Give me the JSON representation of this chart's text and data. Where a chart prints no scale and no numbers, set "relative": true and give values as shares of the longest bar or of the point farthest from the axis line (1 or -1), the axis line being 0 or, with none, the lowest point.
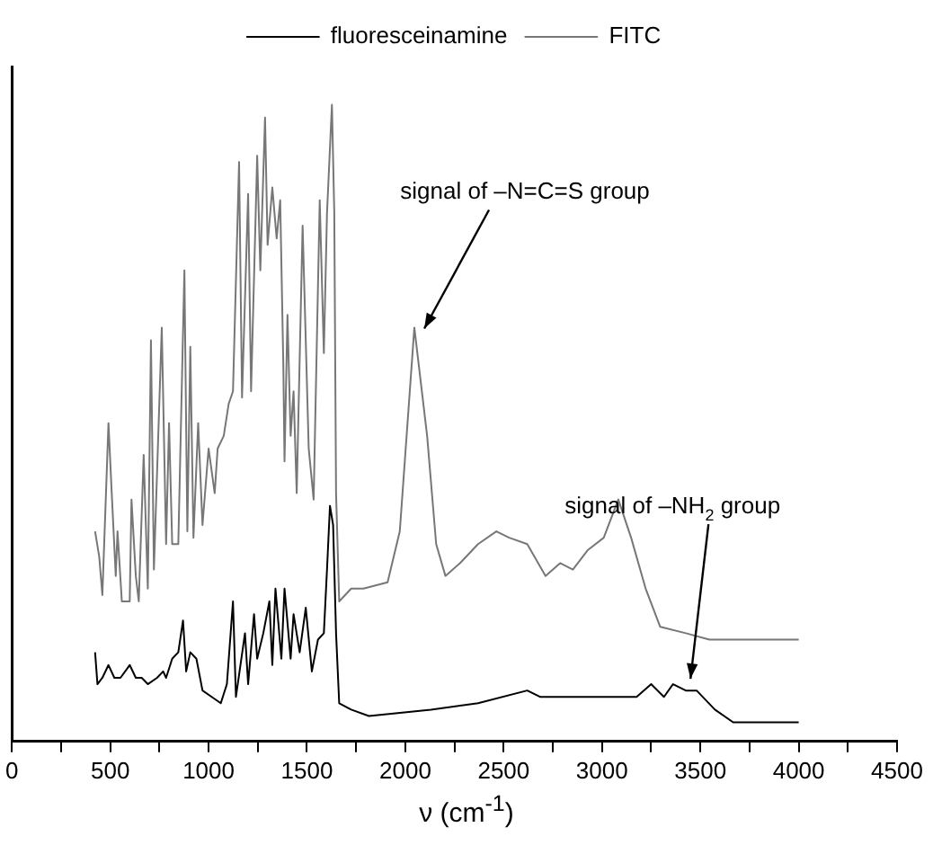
{
  "chart_data": {
    "type": "line",
    "relative": true,
    "xlabel": "ν (cm$^{-1}$)",
    "xlim": [
      0,
      4500
    ],
    "xticks": [
      0,
      {
        "value": 250,
        "label": null
      },
      500,
      {
        "value": 750,
        "label": null
      },
      1000,
      {
        "value": 1250,
        "label": null
      },
      1500,
      {
        "value": 1750,
        "label": null
      },
      2000,
      {
        "value": 2250,
        "label": null
      },
      2500,
      {
        "value": 2750,
        "label": null
      },
      3000,
      {
        "value": 3250,
        "label": null
      },
      3500,
      {
        "value": 3750,
        "label": null
      },
      4000,
      {
        "value": 4250,
        "label": null
      },
      4500
    ],
    "legend": "top",
    "grid": false,
    "marker": "none",
    "line_style": "solid",
    "series": [
      {
        "name": "fluoresceinamine",
        "color": "#000000",
        "x": [
          423,
          435,
          460,
          491,
          521,
          552,
          599,
          630,
          660,
          691,
          738,
          769,
          784,
          815,
          846,
          870,
          886,
          907,
          938,
          969,
          1016,
          1062,
          1093,
          1124,
          1139,
          1185,
          1201,
          1231,
          1247,
          1278,
          1309,
          1324,
          1340,
          1370,
          1386,
          1417,
          1432,
          1463,
          1494,
          1525,
          1556,
          1586,
          1602,
          1617,
          1633,
          1648,
          1664,
          1725,
          1815,
          2130,
          2370,
          2620,
          2685,
          2778,
          2898,
          3056,
          3176,
          3250,
          3315,
          3361,
          3426,
          3481,
          3574,
          3667,
          3824,
          4000
        ],
        "values": [
          0.14,
          0.09,
          0.1,
          0.12,
          0.1,
          0.1,
          0.12,
          0.1,
          0.1,
          0.09,
          0.1,
          0.11,
          0.1,
          0.13,
          0.14,
          0.19,
          0.11,
          0.14,
          0.13,
          0.08,
          0.07,
          0.06,
          0.09,
          0.22,
          0.07,
          0.17,
          0.09,
          0.2,
          0.13,
          0.17,
          0.22,
          0.12,
          0.24,
          0.13,
          0.24,
          0.13,
          0.2,
          0.14,
          0.21,
          0.11,
          0.16,
          0.17,
          0.27,
          0.37,
          0.34,
          0.17,
          0.06,
          0.05,
          0.04,
          0.05,
          0.06,
          0.08,
          0.07,
          0.07,
          0.07,
          0.07,
          0.07,
          0.09,
          0.07,
          0.09,
          0.08,
          0.08,
          0.05,
          0.03,
          0.03,
          0.03
        ]
      },
      {
        "name": "FITC",
        "color": "#777777",
        "x": [
          423,
          444,
          460,
          491,
          506,
          528,
          537,
          559,
          599,
          608,
          630,
          645,
          670,
          691,
          707,
          722,
          762,
          784,
          799,
          815,
          846,
          877,
          892,
          907,
          923,
          947,
          969,
          1000,
          1031,
          1046,
          1077,
          1102,
          1124,
          1155,
          1170,
          1201,
          1216,
          1247,
          1263,
          1287,
          1300,
          1324,
          1346,
          1364,
          1380,
          1386,
          1401,
          1417,
          1432,
          1448,
          1478,
          1509,
          1534,
          1565,
          1586,
          1602,
          1627,
          1639,
          1648,
          1664,
          1725,
          1787,
          1910,
          1972,
          2046,
          2111,
          2157,
          2204,
          2278,
          2370,
          2463,
          2528,
          2620,
          2713,
          2787,
          2852,
          2926,
          3009,
          3083,
          3148,
          3222,
          3296,
          3426,
          3546,
          3824,
          4000
        ],
        "values": [
          0.33,
          0.29,
          0.23,
          0.5,
          0.4,
          0.26,
          0.33,
          0.22,
          0.22,
          0.38,
          0.26,
          0.22,
          0.45,
          0.24,
          0.63,
          0.27,
          0.65,
          0.31,
          0.5,
          0.31,
          0.31,
          0.74,
          0.33,
          0.62,
          0.32,
          0.5,
          0.34,
          0.46,
          0.39,
          0.46,
          0.48,
          0.53,
          0.55,
          0.91,
          0.54,
          0.86,
          0.55,
          0.92,
          0.74,
          0.98,
          0.78,
          0.87,
          0.79,
          0.85,
          0.59,
          0.44,
          0.67,
          0.48,
          0.55,
          0.39,
          0.81,
          0.46,
          0.38,
          0.85,
          0.61,
          0.83,
          1.0,
          0.83,
          0.39,
          0.22,
          0.24,
          0.24,
          0.25,
          0.33,
          0.65,
          0.48,
          0.31,
          0.26,
          0.28,
          0.31,
          0.33,
          0.32,
          0.31,
          0.26,
          0.28,
          0.27,
          0.3,
          0.32,
          0.38,
          0.32,
          0.24,
          0.18,
          0.17,
          0.16,
          0.16,
          0.16
        ]
      }
    ],
    "annotations": [
      {
        "text": "signal of –N=C=S group",
        "x": 2060,
        "y": 0.64
      },
      {
        "text": "signal of –NH$_{2}$ group",
        "x": 3450,
        "y": 0.09
      }
    ]
  }
}
